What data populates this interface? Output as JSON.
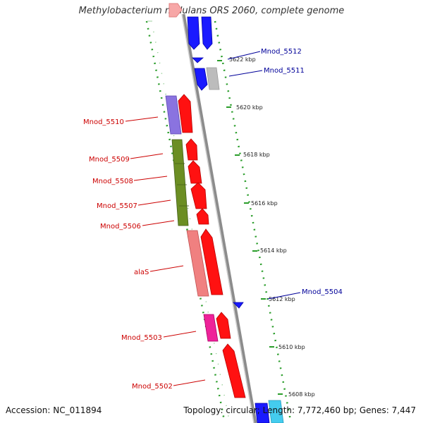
{
  "title": "Methylobacterium nodulans ORS 2060, complete genome",
  "accession": "Accession: NC_011894",
  "summary": "Topology: circular; Length: 7,772,460 bp; Genes: 7,447",
  "colors": {
    "backbone": "#8c8c8c",
    "dots": "#2a9d2a",
    "reverse_label": "#cc0000",
    "forward_label": "#000099"
  },
  "position_ticks": [
    "5622 kbp",
    "5620 kbp",
    "5618 kbp",
    "5616 kbp",
    "5614 kbp",
    "5612 kbp",
    "5610 kbp",
    "5608 kbp"
  ],
  "reverse_gene_labels": [
    "Mnod_5510",
    "Mnod_5509",
    "Mnod_5508",
    "Mnod_5507",
    "Mnod_5506",
    "alaS",
    "Mnod_5503",
    "Mnod_5502"
  ],
  "forward_gene_labels": [
    "Mnod_5512",
    "Mnod_5511",
    "Mnod_5504"
  ]
}
